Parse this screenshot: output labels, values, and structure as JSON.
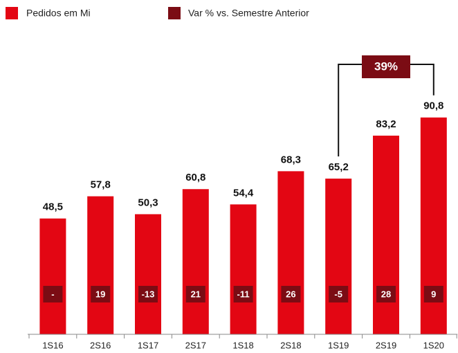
{
  "chart_data": {
    "type": "bar",
    "categories": [
      "1S16",
      "2S16",
      "1S17",
      "2S17",
      "1S18",
      "2S18",
      "1S19",
      "2S19",
      "1S20"
    ],
    "ylim": [
      0,
      100
    ],
    "series": [
      {
        "name": "Pedidos em Mi",
        "color": "#e30613",
        "values": [
          48.5,
          57.8,
          50.3,
          60.8,
          54.4,
          68.3,
          65.2,
          83.2,
          90.8
        ],
        "value_labels": [
          "48,5",
          "57,8",
          "50,3",
          "60,8",
          "54,4",
          "68,3",
          "65,2",
          "83,2",
          "90,8"
        ]
      },
      {
        "name": "Var % vs. Semestre Anterior",
        "color": "#7b0c14",
        "values": [
          null,
          19,
          -13,
          21,
          -11,
          26,
          -5,
          28,
          9
        ],
        "value_labels": [
          "-",
          "19",
          "-13",
          "21",
          "-11",
          "26",
          "-5",
          "28",
          "9"
        ]
      }
    ],
    "annotation": {
      "value": 39,
      "label": "39%",
      "from": "1S19",
      "to": "1S20"
    }
  }
}
